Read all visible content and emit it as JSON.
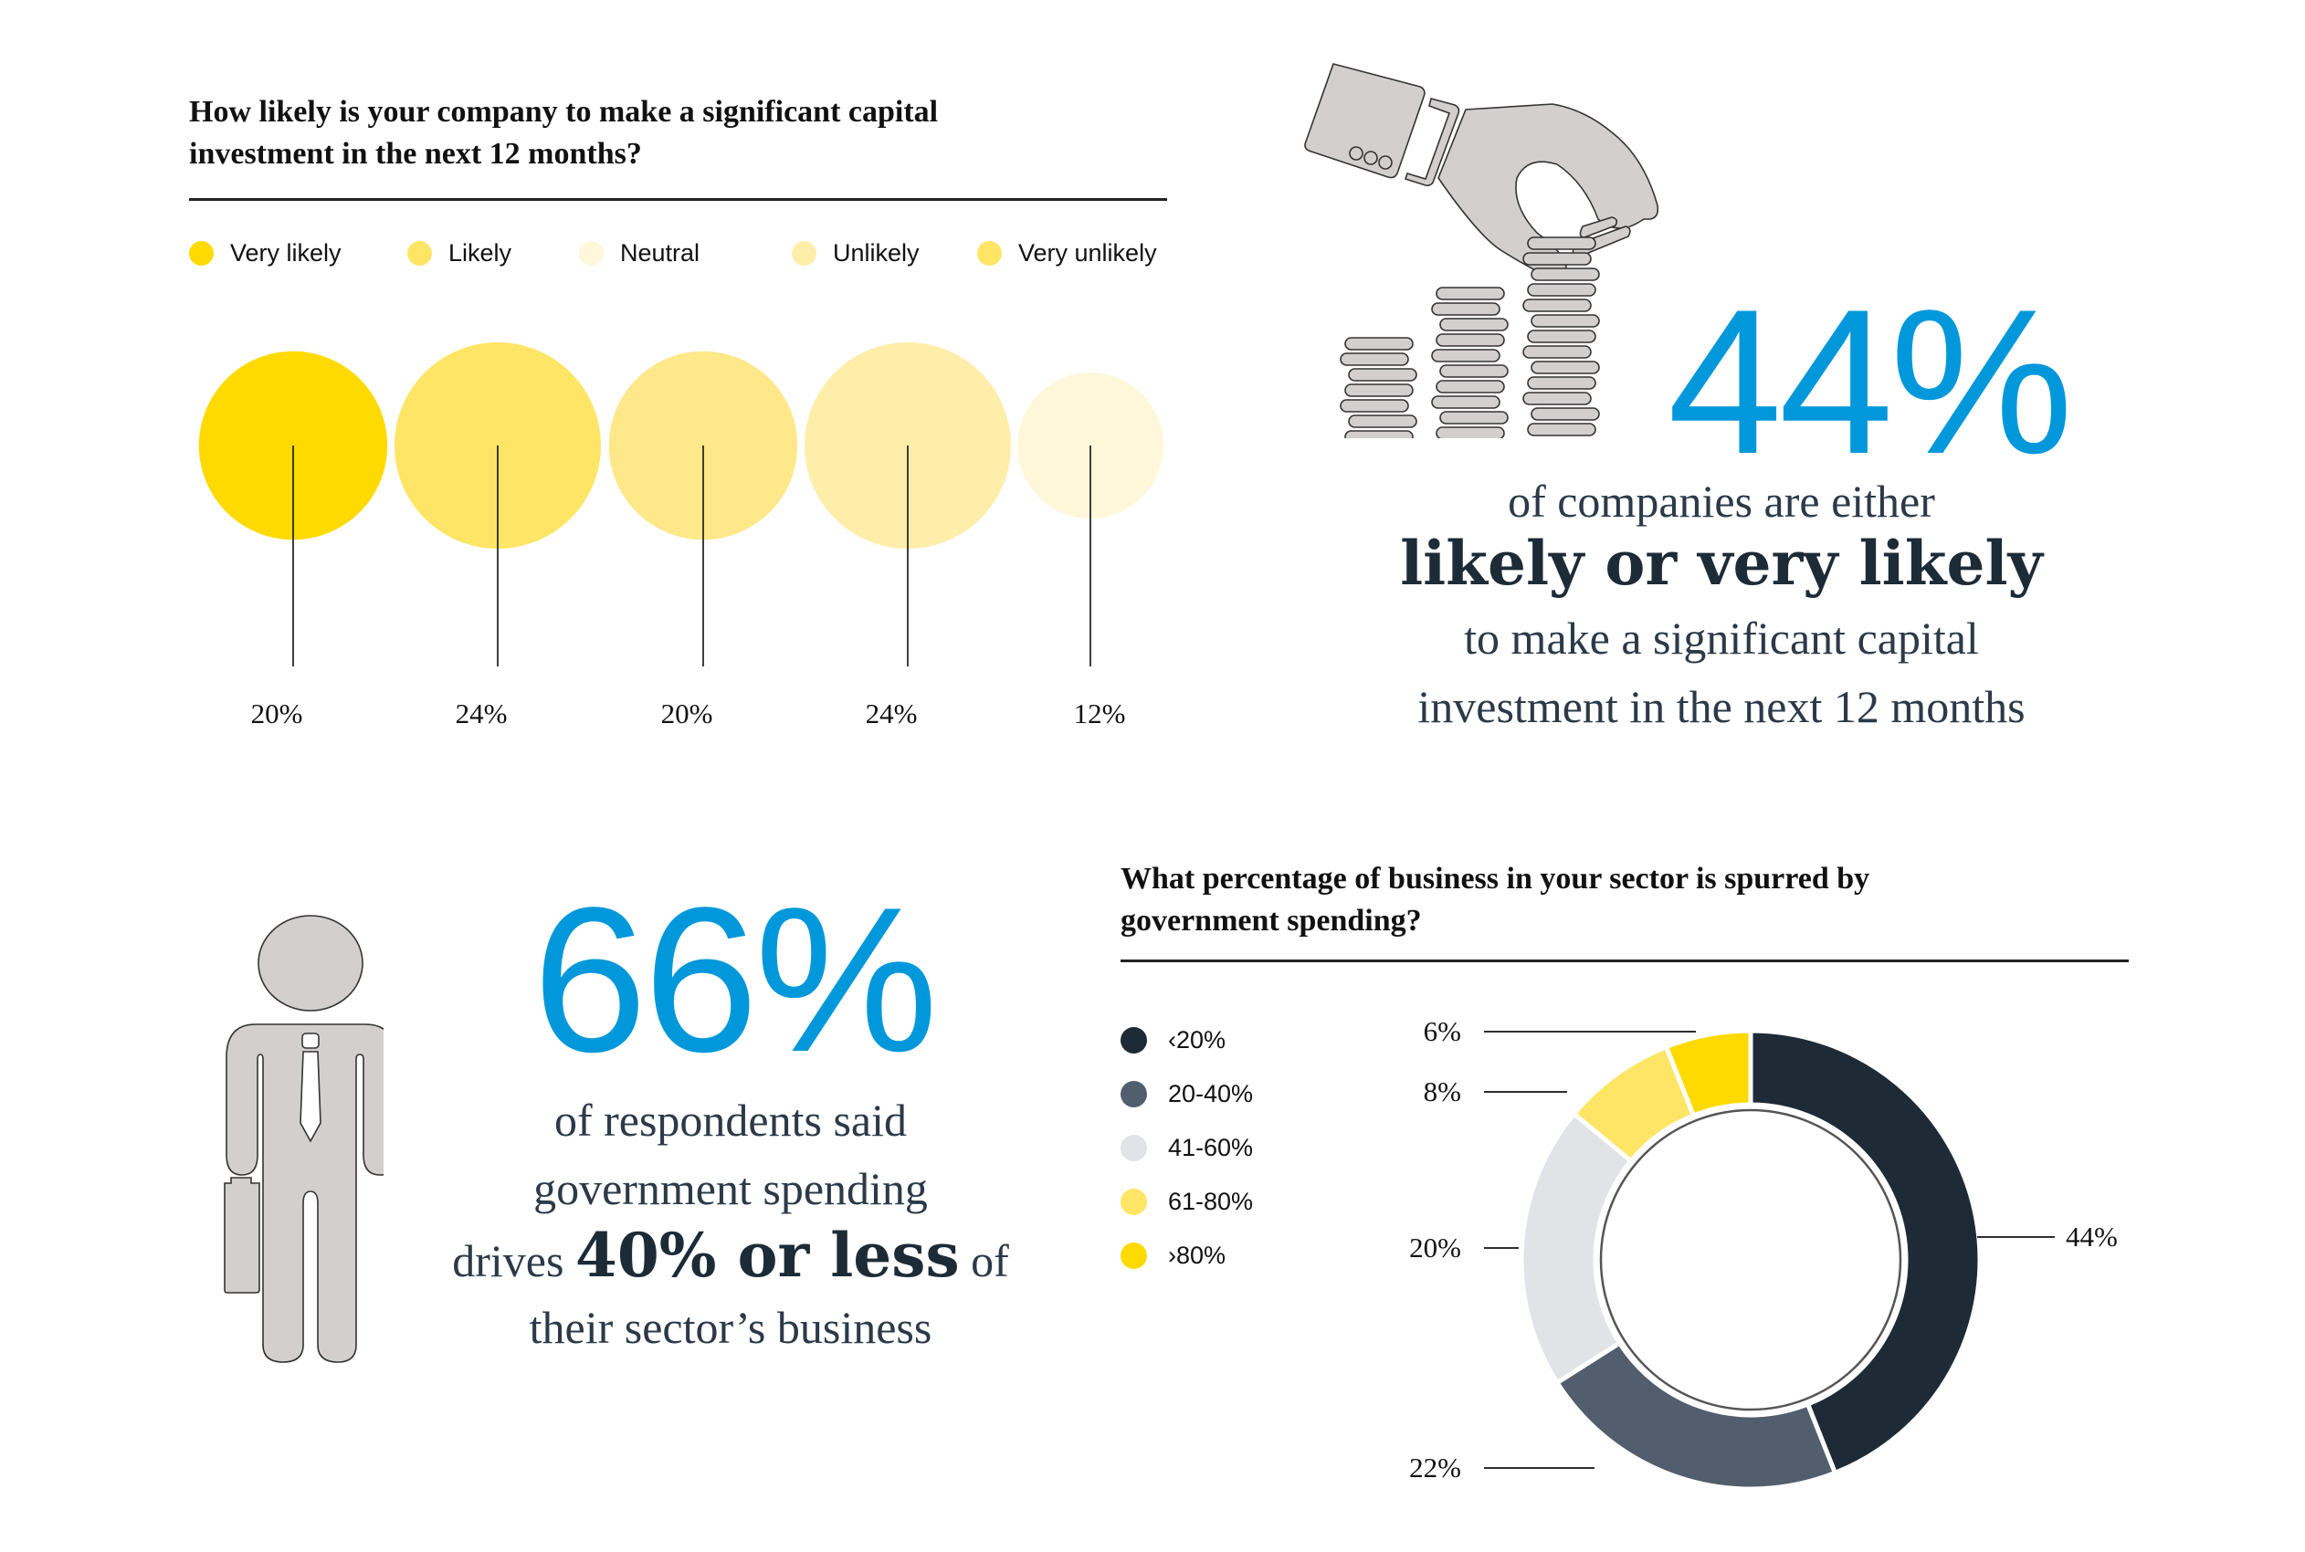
{
  "section1": {
    "question": [
      "How likely is your company to make a significant capital",
      "investment in the next 12 months?"
    ],
    "legend": [
      {
        "label": "Very likely",
        "color": "#FFDA00"
      },
      {
        "label": "Likely",
        "color": "#FFE566"
      },
      {
        "label": "Neutral",
        "color": "#FFF7D9"
      },
      {
        "label": "Unlikely",
        "color": "#FFEEAA"
      },
      {
        "label": "Very unlikely",
        "color": "#FFE566"
      }
    ]
  },
  "stat44": {
    "number": "44%",
    "line1": "of companies are either",
    "line2": "likely or very likely",
    "line3": "to make a significant capital",
    "line4": "investment in the next 12 months",
    "icon": "hand-dropping-coins-icon",
    "accent": "#0098DB"
  },
  "stat66": {
    "number": "66%",
    "line1": "of respondents said",
    "line2": "government spending",
    "line3_pre": "drives",
    "line3_bold": "40% or less",
    "line3_post": "of",
    "line4": "their sector’s business",
    "icon": "businessman-with-briefcase-icon",
    "accent": "#0098DB"
  },
  "section2": {
    "question": [
      "What percentage of business in your sector is spurred by",
      "government spending?"
    ]
  },
  "chart_data": [
    {
      "type": "bubble",
      "title": "How likely is your company to make a significant capital investment in the next 12 months?",
      "categories": [
        "Very likely",
        "Likely",
        "Neutral",
        "Unlikely",
        "Very unlikely"
      ],
      "values": [
        20,
        24,
        20,
        24,
        12
      ],
      "labels": [
        "20%",
        "24%",
        "20%",
        "24%",
        "12%"
      ],
      "colors": [
        "#FFDA00",
        "#FFE566",
        "#FFE88A",
        "#FFEEAA",
        "#FFF7D9"
      ],
      "legend": "top"
    },
    {
      "type": "pie",
      "subtype": "donut",
      "title": "What percentage of business in your sector is spurred by government spending?",
      "categories": [
        "‹20%",
        "20-40%",
        "41-60%",
        "61-80%",
        "›80%"
      ],
      "values": [
        44,
        22,
        20,
        8,
        6
      ],
      "labels": [
        "44%",
        "22%",
        "20%",
        "8%",
        "6%"
      ],
      "colors": [
        "#1E2B36",
        "#525E6D",
        "#E2E3E6",
        "#FFE566",
        "#FFDA00"
      ],
      "legend": "left"
    }
  ]
}
